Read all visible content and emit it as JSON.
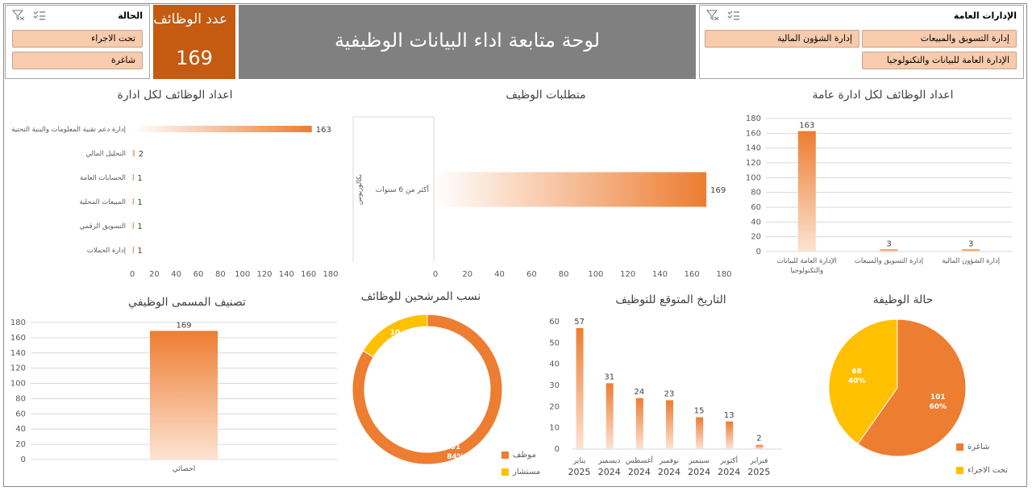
{
  "header": {
    "title": "لوحة متابعة اداء البيانات الوظيفية",
    "count_label": "عدد الوظائف",
    "count_value": "169"
  },
  "slicer_admin": {
    "title": "الإدارات العامة",
    "items": [
      "إدارة التسويق والمبيعات",
      "إدارة الشؤون المالية",
      "الإدارة العامة للبيانات والتكنولوجيا"
    ]
  },
  "slicer_status": {
    "title": "الحالة",
    "items": [
      "تحت الاجراء",
      "شاغرة"
    ]
  },
  "icons": [
    "multi-select-icon",
    "clear-filter-icon"
  ],
  "colors": {
    "orange": "#ed7d31",
    "dark_orange": "#c55a11",
    "gold": "#ffc000",
    "peach": "#f8cbad",
    "gray": "#808080"
  },
  "chart_data": [
    {
      "id": "jobs_per_general_admin",
      "type": "bar",
      "title": "اعداد الوظائف لكل ادارة عامة",
      "categories": [
        "الإدارة العامة للبيانات والتكنولوجيا",
        "إدارة التسويق والمبيعات",
        "إدارة الشؤون المالية"
      ],
      "values": [
        163,
        3,
        3
      ],
      "ylim": [
        0,
        180
      ],
      "yticks": [
        "0",
        "20",
        "40",
        "60",
        "80",
        "100",
        "120",
        "140",
        "160",
        "180"
      ]
    },
    {
      "id": "job_requirements",
      "type": "bar",
      "orientation": "horizontal",
      "title": "متطلبات الوظيف",
      "group_label": "بكالوريوس",
      "categories": [
        "أكثر من 6 سنوات"
      ],
      "values": [
        169
      ],
      "xlim": [
        0,
        180
      ],
      "xticks": [
        "0",
        "20",
        "40",
        "60",
        "80",
        "100",
        "120",
        "140",
        "160",
        "180"
      ]
    },
    {
      "id": "jobs_per_admin",
      "type": "bar",
      "orientation": "horizontal",
      "title": "اعداد الوظائف لكل ادارة",
      "categories": [
        "إدارة دعم تقنية المعلومات والبنية التحتية",
        "التحليل المالي",
        "الحسابات العامة",
        "المبيعات المحلية",
        "التسويق الرقمي",
        "إدارة الحملات"
      ],
      "values": [
        163,
        2,
        1,
        1,
        1,
        1
      ],
      "xlim": [
        0,
        180
      ],
      "xticks": [
        "0",
        "20",
        "40",
        "60",
        "80",
        "100",
        "120",
        "140",
        "160",
        "180"
      ]
    },
    {
      "id": "job_status",
      "type": "pie",
      "title": "حالة الوظيفة",
      "slices": [
        {
          "name": "شاغرة",
          "value": 101,
          "percent": "60%",
          "color": "#ed7d31"
        },
        {
          "name": "تحت الاجراء",
          "value": 68,
          "percent": "40%",
          "color": "#ffc000"
        }
      ]
    },
    {
      "id": "expected_hiring_date",
      "type": "bar",
      "title": "التاريخ المتوقع للتوظيف",
      "categories": [
        "يناير 2025",
        "ديسمبر 2024",
        "أغسطس 2024",
        "نوفمبر 2024",
        "سبتمبر 2024",
        "أكتوبر 2024",
        "فبراير 2025"
      ],
      "months": [
        "يناير",
        "ديسمبر",
        "أغسطس",
        "نوفمبر",
        "سبتمبر",
        "أكتوبر",
        "فبراير"
      ],
      "years": [
        "2025",
        "2024",
        "2024",
        "2024",
        "2024",
        "2024",
        "2025"
      ],
      "values": [
        57,
        31,
        24,
        23,
        15,
        13,
        2
      ],
      "ylim": [
        0,
        60
      ],
      "yticks": [
        "0",
        "10",
        "20",
        "30",
        "40",
        "50",
        "60"
      ]
    },
    {
      "id": "candidate_ratio",
      "type": "pie",
      "subtype": "donut",
      "title": "نسب المرشحين للوظائف",
      "slices": [
        {
          "name": "موظف",
          "value": 51,
          "percent": "84%",
          "color": "#ed7d31"
        },
        {
          "name": "مستشار",
          "value": 10,
          "percent": "16%",
          "color": "#ffc000"
        }
      ]
    },
    {
      "id": "job_title_classification",
      "type": "bar",
      "title": "تصنيف المسمى الوظيفي",
      "categories": [
        "احصائي"
      ],
      "values": [
        169
      ],
      "ylim": [
        0,
        180
      ],
      "yticks": [
        "0",
        "20",
        "40",
        "60",
        "80",
        "100",
        "120",
        "140",
        "160",
        "180"
      ]
    }
  ]
}
